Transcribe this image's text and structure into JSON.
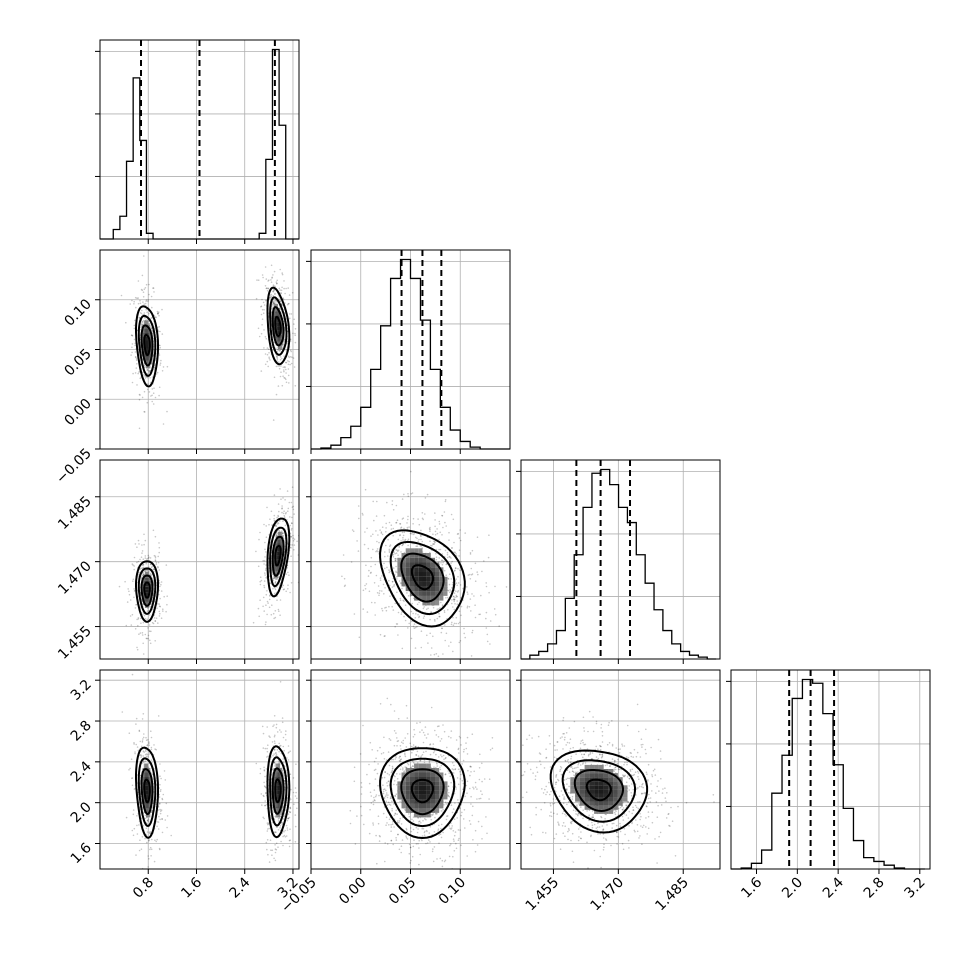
{
  "chart_data": {
    "type": "corner",
    "n_parameters": 4,
    "parameters": [
      {
        "range": [
          0.0,
          3.3
        ],
        "ticks": [
          0.8,
          1.6,
          2.4,
          3.2
        ],
        "tick_labels": [
          "0.8",
          "1.6",
          "2.4",
          "3.2"
        ]
      },
      {
        "range": [
          -0.05,
          0.15
        ],
        "ticks": [
          -0.05,
          0.0,
          0.05,
          0.1
        ],
        "tick_labels": [
          "−0.05",
          "0.00",
          "0.05",
          "0.10"
        ]
      },
      {
        "range": [
          1.4475,
          1.4935
        ],
        "ticks": [
          1.455,
          1.47,
          1.485
        ],
        "tick_labels": [
          "1.455",
          "1.470",
          "1.485"
        ]
      },
      {
        "range": [
          1.35,
          3.3
        ],
        "ticks": [
          1.6,
          2.0,
          2.4,
          2.8,
          3.2
        ],
        "tick_labels": [
          "1.6",
          "2.0",
          "2.4",
          "2.8",
          "3.2"
        ]
      }
    ],
    "histograms": [
      {
        "parameter": 0,
        "bin_edges": [
          0.0,
          0.11,
          0.22,
          0.33,
          0.44,
          0.55,
          0.66,
          0.77,
          0.88,
          0.99,
          1.1,
          1.21,
          1.32,
          1.43,
          1.54,
          1.65,
          1.76,
          1.87,
          1.98,
          2.09,
          2.2,
          2.31,
          2.42,
          2.53,
          2.64,
          2.75,
          2.86,
          2.97,
          3.08,
          3.19,
          3.3
        ],
        "counts": [
          0,
          0,
          0.05,
          0.12,
          0.41,
          0.85,
          0.52,
          0.03,
          0,
          0,
          0,
          0,
          0,
          0,
          0,
          0,
          0,
          0,
          0,
          0,
          0,
          0,
          0,
          0,
          0.03,
          0.42,
          1.0,
          0.6,
          0,
          0
        ],
        "quantiles": [
          0.68,
          1.65,
          2.9
        ],
        "ylim": [
          0,
          1.05
        ]
      },
      {
        "parameter": 1,
        "bin_edges": [
          -0.05,
          -0.04,
          -0.03,
          -0.02,
          -0.01,
          0.0,
          0.01,
          0.02,
          0.03,
          0.04,
          0.05,
          0.06,
          0.07,
          0.08,
          0.09,
          0.1,
          0.11,
          0.12,
          0.13,
          0.14,
          0.15
        ],
        "counts": [
          0,
          0.005,
          0.02,
          0.06,
          0.12,
          0.22,
          0.42,
          0.65,
          0.9,
          1.0,
          0.9,
          0.68,
          0.42,
          0.22,
          0.1,
          0.04,
          0.01,
          0,
          0,
          0
        ],
        "quantiles": [
          0.041,
          0.062,
          0.081
        ],
        "ylim": [
          0,
          1.05
        ]
      },
      {
        "parameter": 2,
        "bin_edges": [
          1.4475,
          1.44955,
          1.4516,
          1.45365,
          1.4557,
          1.45775,
          1.4598,
          1.46185,
          1.4639,
          1.46595,
          1.468,
          1.47005,
          1.4721,
          1.47415,
          1.4762,
          1.47825,
          1.4803,
          1.48235,
          1.4844,
          1.48645,
          1.4885,
          1.49055,
          1.4926
        ],
        "counts": [
          0,
          0.02,
          0.04,
          0.08,
          0.15,
          0.32,
          0.55,
          0.8,
          0.98,
          1.0,
          0.92,
          0.8,
          0.72,
          0.55,
          0.4,
          0.26,
          0.15,
          0.08,
          0.04,
          0.02,
          0.01,
          0
        ],
        "quantiles": [
          1.4603,
          1.4659,
          1.4727
        ],
        "ylim": [
          0,
          1.05
        ]
      },
      {
        "parameter": 3,
        "bin_edges": [
          1.35,
          1.45,
          1.55,
          1.65,
          1.75,
          1.85,
          1.95,
          2.05,
          2.15,
          2.25,
          2.35,
          2.45,
          2.55,
          2.65,
          2.75,
          2.85,
          2.95,
          3.05,
          3.15,
          3.25
        ],
        "counts": [
          0,
          0.005,
          0.03,
          0.1,
          0.4,
          0.6,
          0.9,
          1.0,
          0.98,
          0.82,
          0.55,
          0.32,
          0.15,
          0.06,
          0.04,
          0.02,
          0.005,
          0,
          0
        ],
        "quantiles": [
          1.92,
          2.13,
          2.36
        ],
        "ylim": [
          0,
          1.05
        ]
      }
    ],
    "pairs": [
      {
        "x": 0,
        "y": 1,
        "modes": [
          {
            "center": [
              0.78,
              0.055
            ],
            "sd": [
              0.09,
              0.02
            ],
            "rho": -0.2,
            "weight": 0.46
          },
          {
            "center": [
              2.95,
              0.073
            ],
            "sd": [
              0.09,
              0.019
            ],
            "rho": -0.3,
            "weight": 0.54
          }
        ]
      },
      {
        "x": 0,
        "y": 2,
        "modes": [
          {
            "center": [
              0.78,
              1.4635
            ],
            "sd": [
              0.09,
              0.0035
            ],
            "rho": 0.0,
            "weight": 0.46
          },
          {
            "center": [
              2.95,
              1.4715
            ],
            "sd": [
              0.09,
              0.0045
            ],
            "rho": 0.35,
            "weight": 0.54
          }
        ]
      },
      {
        "x": 0,
        "y": 3,
        "modes": [
          {
            "center": [
              0.78,
              2.12
            ],
            "sd": [
              0.09,
              0.22
            ],
            "rho": -0.15,
            "weight": 0.46
          },
          {
            "center": [
              2.95,
              2.12
            ],
            "sd": [
              0.09,
              0.22
            ],
            "rho": 0.0,
            "weight": 0.54
          }
        ]
      },
      {
        "x": 1,
        "y": 2,
        "modes": [
          {
            "center": [
              0.062,
              1.4665
            ],
            "sd": [
              0.021,
              0.0055
            ],
            "rho": -0.3,
            "weight": 1.0
          }
        ]
      },
      {
        "x": 1,
        "y": 3,
        "modes": [
          {
            "center": [
              0.062,
              2.12
            ],
            "sd": [
              0.021,
              0.22
            ],
            "rho": 0.0,
            "weight": 1.0
          }
        ]
      },
      {
        "x": 2,
        "y": 3,
        "modes": [
          {
            "center": [
              1.4655,
              2.13
            ],
            "sd": [
              0.0055,
              0.2
            ],
            "rho": -0.15,
            "weight": 1.0
          }
        ]
      }
    ],
    "contour_levels_sigma": [
      0.5,
      1.0,
      1.5,
      2.0
    ],
    "grid": true,
    "line_style_quantiles": "dashed"
  }
}
